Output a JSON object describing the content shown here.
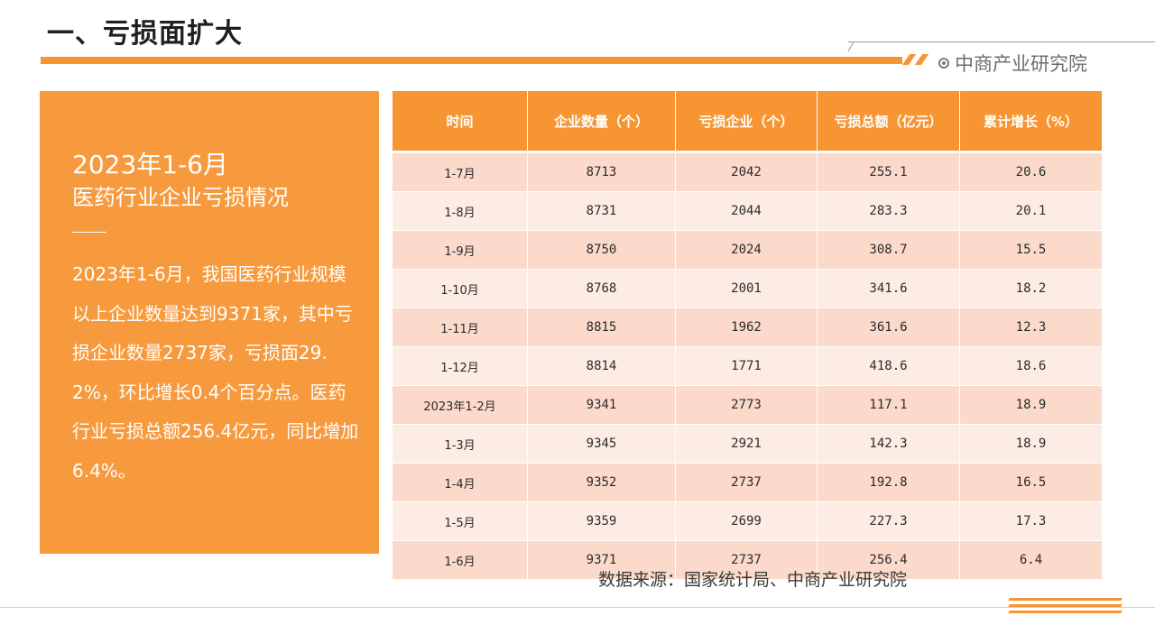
{
  "page": {
    "title": "一、亏损面扩大",
    "brand": "中商产业研究院",
    "brand_icon": "target-icon",
    "accent_color": "#f79532"
  },
  "summary": {
    "title_line1": "2023年1-6月",
    "title_line2": "医药行业企业亏损情况",
    "body": "2023年1-6月，我国医药行业规模以上企业数量达到9371家，其中亏损企业数量2737家，亏损面29.2%，环比增长0.4个百分点。医药行业亏损总额256.4亿元，同比增加6.4%。"
  },
  "table": {
    "headers": [
      "时间",
      "企业数量（个）",
      "亏损企业（个）",
      "亏损总额（亿元）",
      "累计增长（%）"
    ],
    "rows": [
      [
        "1-7月",
        "8713",
        "2042",
        "255.1",
        "20.6"
      ],
      [
        "1-8月",
        "8731",
        "2044",
        "283.3",
        "20.1"
      ],
      [
        "1-9月",
        "8750",
        "2024",
        "308.7",
        "15.5"
      ],
      [
        "1-10月",
        "8768",
        "2001",
        "341.6",
        "18.2"
      ],
      [
        "1-11月",
        "8815",
        "1962",
        "361.6",
        "12.3"
      ],
      [
        "1-12月",
        "8814",
        "1771",
        "418.6",
        "18.6"
      ],
      [
        "2023年1-2月",
        "9341",
        "2773",
        "117.1",
        "18.9"
      ],
      [
        "1-3月",
        "9345",
        "2921",
        "142.3",
        "18.9"
      ],
      [
        "1-4月",
        "9352",
        "2737",
        "192.8",
        "16.5"
      ],
      [
        "1-5月",
        "9359",
        "2699",
        "227.3",
        "17.3"
      ],
      [
        "1-6月",
        "9371",
        "2737",
        "256.4",
        "6.4"
      ]
    ]
  },
  "source": "数据来源：国家统计局、中商产业研究院"
}
